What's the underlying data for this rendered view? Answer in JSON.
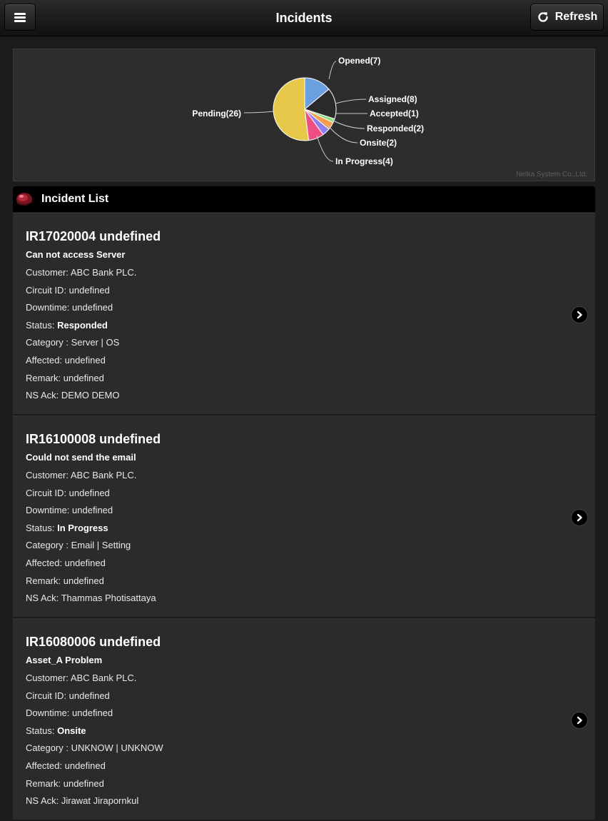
{
  "header": {
    "title": "Incidents",
    "refresh_label": "Refresh"
  },
  "chart_data": {
    "type": "pie",
    "slices": [
      {
        "label": "Opened(7)",
        "name": "Opened",
        "value": 7,
        "color": "#6a9fe0"
      },
      {
        "label": "Assigned(8)",
        "name": "Assigned",
        "value": 8,
        "color": "#2a2a2a"
      },
      {
        "label": "Accepted(1)",
        "name": "Accepted",
        "value": 1,
        "color": "#86e07e"
      },
      {
        "label": "Responded(2)",
        "name": "Responded",
        "value": 2,
        "color": "#f39c4a"
      },
      {
        "label": "Onsite(2)",
        "name": "Onsite",
        "value": 2,
        "color": "#8a7ff0"
      },
      {
        "label": "In Progress(4)",
        "name": "In Progress",
        "value": 4,
        "color": "#ee4f83"
      },
      {
        "label": "Pending(26)",
        "name": "Pending",
        "value": 26,
        "color": "#e7c84a"
      }
    ],
    "credit": "Netka System Co.,Ltd."
  },
  "list": {
    "title": "Incident List"
  },
  "incidents": [
    {
      "id_line": "IR17020004 undefined",
      "subject": "Can not access Server",
      "customer": "Customer: ABC Bank PLC.",
      "circuit": "Circuit ID: undefined",
      "downtime": "Downtime: undefined",
      "status_prefix": "Status: ",
      "status": "Responded",
      "category": "Category : Server | OS",
      "affected": "Affected: undefined",
      "remark": "Remark: undefined",
      "ns_ack": "NS Ack: DEMO DEMO"
    },
    {
      "id_line": "IR16100008 undefined",
      "subject": "Could not send the email",
      "customer": "Customer: ABC Bank PLC.",
      "circuit": "Circuit ID: undefined",
      "downtime": "Downtime: undefined",
      "status_prefix": "Status: ",
      "status": "In Progress",
      "category": "Category : Email | Setting",
      "affected": "Affected: undefined",
      "remark": "Remark: undefined",
      "ns_ack": "NS Ack: Thammas Photisattaya"
    },
    {
      "id_line": "IR16080006 undefined",
      "subject": "Asset_A Problem",
      "customer": "Customer: ABC Bank PLC.",
      "circuit": "Circuit ID: undefined",
      "downtime": "Downtime: undefined",
      "status_prefix": "Status: ",
      "status": "Onsite",
      "category": "Category : UNKNOW | UNKNOW",
      "affected": "Affected: undefined",
      "remark": "Remark: undefined",
      "ns_ack": "NS Ack: Jirawat Jirapornkul"
    }
  ]
}
